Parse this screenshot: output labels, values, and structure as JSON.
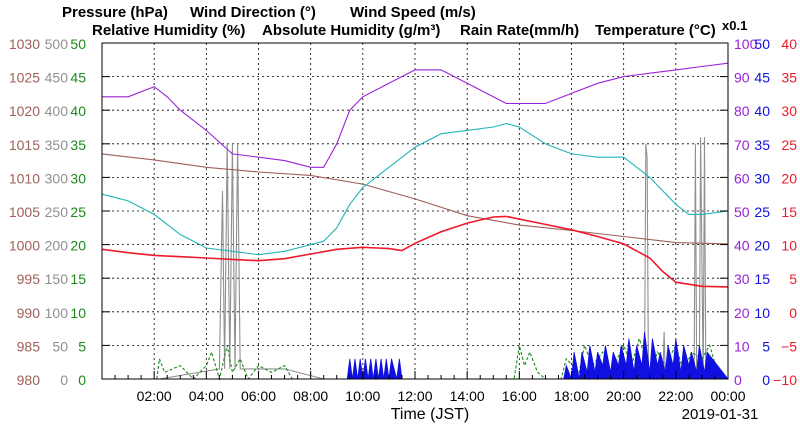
{
  "chart_data": {
    "type": "line",
    "date": "2019-01-31",
    "xlabel": "Time (JST)",
    "x_ticks": [
      "02:00",
      "04:00",
      "06:00",
      "08:00",
      "10:00",
      "12:00",
      "14:00",
      "16:00",
      "18:00",
      "20:00",
      "22:00",
      "00:00"
    ],
    "xlim_hours": [
      0,
      24
    ],
    "grid": true,
    "legend": [
      {
        "text": "Pressure (hPa)",
        "color": "#a0605a"
      },
      {
        "text": "Wind Direction (°)",
        "color": "#909090"
      },
      {
        "text": "Wind Speed (m/s)",
        "color": "#1a8a1a"
      },
      {
        "text": "Relative Humidity (%)",
        "color": "#9a22d8"
      },
      {
        "text": "Absolute Humidity (g/m³)",
        "color": "#22b5b5"
      },
      {
        "text": "Rain Rate(mm/h)",
        "color": "#1010e0"
      },
      {
        "text": "Temperature (°C)",
        "color": "#ee1a2a"
      }
    ],
    "abs_humidity_multiplier": "x0.1",
    "axes": {
      "pressure": {
        "color": "#a0605a",
        "ticks": [
          "1030",
          "1025",
          "1020",
          "1015",
          "1010",
          "1005",
          "1000",
          "995",
          "990",
          "985",
          "980"
        ]
      },
      "wind_dir": {
        "color": "#909090",
        "ticks": [
          "500",
          "450",
          "400",
          "350",
          "300",
          "250",
          "200",
          "150",
          "100",
          "50",
          "0"
        ]
      },
      "wind_speed": {
        "color": "#1a8a1a",
        "ticks": [
          "50",
          "45",
          "40",
          "35",
          "30",
          "25",
          "20",
          "15",
          "10",
          "5",
          "0"
        ]
      },
      "humidity": {
        "color": "#9a22d8",
        "ticks": [
          "100",
          "90",
          "80",
          "70",
          "60",
          "50",
          "40",
          "30",
          "20",
          "10",
          "0"
        ]
      },
      "rain": {
        "color": "#1010e0",
        "ticks": [
          "50",
          "45",
          "40",
          "35",
          "30",
          "25",
          "20",
          "15",
          "10",
          "5",
          "0"
        ]
      },
      "temp": {
        "color": "#ee1a2a",
        "ticks": [
          "40",
          "35",
          "30",
          "25",
          "20",
          "15",
          "10",
          "5",
          "0",
          "−5",
          "−10"
        ]
      }
    },
    "series": [
      {
        "name": "Relative Humidity (%)",
        "color": "#9a22d8",
        "axis": "humidity",
        "x": [
          0,
          1,
          2,
          2.5,
          3,
          4,
          5,
          6,
          7,
          8,
          8.5,
          9,
          9.5,
          10,
          11,
          12,
          12.5,
          13,
          14,
          15,
          15.5,
          16,
          17,
          18,
          19,
          20,
          21,
          22,
          23,
          24
        ],
        "y": [
          84,
          84,
          87,
          84,
          80,
          74,
          67,
          66,
          65,
          63,
          63,
          70,
          80,
          84,
          88,
          92,
          92,
          92,
          88,
          84,
          82,
          82,
          82,
          85,
          88,
          90,
          91,
          92,
          93,
          94
        ]
      },
      {
        "name": "Absolute Humidity (g/m³) x0.1",
        "color": "#22b5b5",
        "axis": "humidity",
        "x": [
          0,
          1,
          2,
          3,
          4,
          5,
          6,
          7,
          8,
          8.5,
          9,
          9.5,
          10,
          11,
          12,
          13,
          14,
          15,
          15.5,
          16,
          17,
          18,
          19,
          20,
          21,
          22,
          22.5,
          23,
          24
        ],
        "y": [
          55,
          53,
          49,
          43,
          39,
          38,
          37,
          38,
          40,
          41,
          45,
          52,
          57,
          63,
          69,
          73,
          74,
          75,
          76,
          75,
          70,
          67,
          66,
          66,
          60,
          52,
          49,
          49,
          50
        ]
      },
      {
        "name": "Pressure (hPa)",
        "color": "#a0605a",
        "axis": "pressure",
        "x": [
          0,
          2,
          4,
          6,
          8,
          10,
          12,
          14,
          16,
          18,
          20,
          22,
          24
        ],
        "y": [
          1013.5,
          1012.6,
          1011.5,
          1010.8,
          1010.3,
          1009.0,
          1006.8,
          1004.3,
          1002.9,
          1002.1,
          1001.2,
          1000.3,
          1000.1
        ]
      },
      {
        "name": "Temperature (°C)",
        "color": "#ee1a2a",
        "axis": "temp",
        "x": [
          0,
          1,
          2,
          3,
          4,
          5,
          6,
          7,
          8,
          9,
          10,
          11,
          11.5,
          12,
          13,
          14,
          15,
          15.5,
          16,
          17,
          18,
          19,
          20,
          21,
          21.5,
          22,
          23,
          24
        ],
        "y": [
          9.3,
          8.8,
          8.4,
          8.2,
          8.0,
          7.8,
          7.6,
          7.9,
          8.6,
          9.3,
          9.6,
          9.4,
          9.1,
          10.2,
          11.9,
          13.2,
          14.1,
          14.2,
          13.8,
          13.0,
          12.2,
          11.2,
          10.1,
          8.0,
          6.0,
          4.4,
          3.8,
          3.7
        ]
      },
      {
        "name": "Wind Direction (°)",
        "color": "#909090",
        "axis": "wind_dir",
        "x": [
          0,
          2.2,
          4.5,
          4.62,
          4.7,
          4.8,
          4.9,
          5.0,
          5.1,
          5.2,
          5.3,
          7,
          8.5,
          20.8,
          20.85,
          20.9,
          20.95,
          21.1,
          21.5,
          21.55,
          21.6,
          22,
          22.7,
          22.75,
          22.8,
          22.85,
          22.9,
          22.95,
          23.05,
          23.1,
          23.15,
          23.2,
          24
        ],
        "y": [
          0,
          0,
          15,
          280,
          15,
          350,
          15,
          350,
          15,
          350,
          15,
          15,
          0,
          0,
          350,
          330,
          15,
          0,
          0,
          70,
          0,
          0,
          0,
          350,
          0,
          30,
          0,
          360,
          0,
          360,
          0,
          0,
          0
        ]
      },
      {
        "name": "Wind Speed (m/s)",
        "color": "#1a8a1a",
        "axis": "wind_speed",
        "x": [
          0,
          2.1,
          2.2,
          2.4,
          3,
          3.5,
          4,
          4.2,
          4.5,
          4.8,
          5,
          5.3,
          5.6,
          6,
          6.5,
          7,
          7.3,
          8,
          15.8,
          16,
          16.2,
          16.4,
          16.7,
          17,
          17.6,
          17.8,
          18.3,
          18.5,
          18.8,
          19.2,
          19.5,
          20,
          20.3,
          20.6,
          21,
          21.3,
          21.6,
          22,
          22.3,
          22.6,
          23,
          23.3,
          23.6,
          24
        ],
        "y": [
          0,
          0,
          3,
          1,
          2,
          0,
          2,
          4,
          0,
          5,
          1,
          3,
          0,
          2,
          1,
          2,
          0,
          0,
          0,
          5,
          2,
          4,
          1,
          0,
          0,
          3,
          1,
          5,
          2,
          4,
          1,
          5,
          2,
          6,
          1,
          4,
          2,
          5,
          1,
          4,
          3,
          5,
          1,
          0
        ]
      },
      {
        "name": "Rain Rate(mm/h)",
        "color": "#1010e0",
        "axis": "rain",
        "x": [
          0,
          9.4,
          9.5,
          9.6,
          9.7,
          9.8,
          9.9,
          10.0,
          10.1,
          10.2,
          10.3,
          10.4,
          10.5,
          10.6,
          10.7,
          10.8,
          10.9,
          11.0,
          11.1,
          11.3,
          11.4,
          11.5,
          17.7,
          17.8,
          18.0,
          18.1,
          18.3,
          18.4,
          18.6,
          18.7,
          18.9,
          19.0,
          19.2,
          19.3,
          19.5,
          19.6,
          19.8,
          19.9,
          20.1,
          20.2,
          20.4,
          20.5,
          20.7,
          20.8,
          21.0,
          21.1,
          21.3,
          21.4,
          21.6,
          21.7,
          21.9,
          22.0,
          22.2,
          22.3,
          22.5,
          22.6,
          22.8,
          22.9,
          23.1,
          23.2,
          24
        ],
        "y": [
          0,
          0,
          3,
          0,
          3,
          0,
          3,
          0,
          3,
          0,
          3,
          0,
          3,
          0,
          3,
          0,
          3,
          0,
          3,
          0,
          3,
          0,
          0,
          2,
          0,
          4,
          0,
          4,
          1,
          5,
          1,
          4,
          2,
          5,
          1,
          4,
          2,
          5,
          2,
          6,
          1,
          5,
          2,
          7,
          1,
          6,
          2,
          4,
          1,
          5,
          2,
          6,
          1,
          5,
          2,
          4,
          1,
          5,
          1,
          4,
          0
        ]
      }
    ]
  }
}
